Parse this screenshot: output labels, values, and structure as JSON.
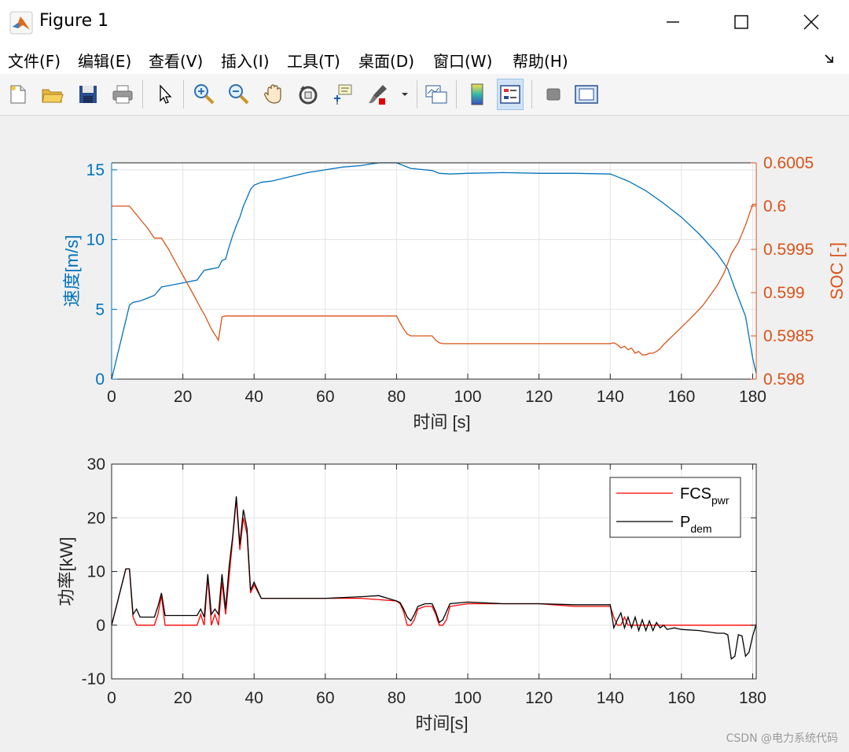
{
  "window": {
    "title": "Figure 1",
    "icon": "matlab-logo-icon",
    "controls": [
      "minimize-icon",
      "maximize-icon",
      "close-icon"
    ]
  },
  "menu": {
    "items": [
      "文件(F)",
      "编辑(E)",
      "查看(V)",
      "插入(I)",
      "工具(T)",
      "桌面(D)",
      "窗口(W)",
      "帮助(H)"
    ],
    "overflow_icon": "dock-arrow-icon"
  },
  "toolbar": {
    "buttons": [
      "new-figure-icon",
      "open-file-icon",
      "save-icon",
      "print-icon",
      "pointer-icon",
      "zoom-in-icon",
      "zoom-out-icon",
      "pan-icon",
      "rotate-3d-icon",
      "data-cursor-icon",
      "brush-icon",
      "brush-dropdown-icon",
      "link-plot-icon",
      "colorbar-icon",
      "legend-icon",
      "hide-plot-tools-icon",
      "show-plot-tools-icon"
    ],
    "active": "legend-icon"
  },
  "watermark": "CSDN @电力系统代码",
  "colors": {
    "blue": "#0072BD",
    "orange": "#D95319",
    "red": "#FF0000",
    "black": "#000000"
  },
  "chart_data": [
    {
      "type": "line",
      "xlabel": "时间 [s]",
      "ylabel_left": "速度[m/s]",
      "ylabel_right": "SOC [-]",
      "xlim": [
        0,
        181
      ],
      "ylim_left": [
        0,
        15.5
      ],
      "ylim_right": [
        0.598,
        0.6005
      ],
      "xticks": [
        "0",
        "20",
        "40",
        "60",
        "80",
        "100",
        "120",
        "140",
        "160",
        "180"
      ],
      "yticks_left": [
        "0",
        "5",
        "10",
        "15"
      ],
      "yticks_right": [
        "0.598",
        "0.5985",
        "0.599",
        "0.5995",
        "0.6",
        "0.6005"
      ],
      "grid": true,
      "series": [
        {
          "axis": "left",
          "color": "#0072BD",
          "x": [
            0,
            5,
            6,
            8,
            10,
            12,
            14,
            16,
            18,
            20,
            22,
            24,
            26,
            28,
            30,
            31,
            32,
            33,
            34,
            35,
            36,
            37,
            38,
            39,
            40,
            42,
            45,
            50,
            55,
            60,
            65,
            70,
            75,
            78,
            80,
            82,
            84,
            86,
            88,
            90,
            92,
            95,
            100,
            110,
            120,
            130,
            140,
            142,
            145,
            150,
            155,
            160,
            165,
            170,
            173,
            175,
            178,
            180,
            181
          ],
          "y": [
            0,
            5.3,
            5.5,
            5.6,
            5.8,
            6.0,
            6.6,
            6.7,
            6.8,
            6.9,
            7.0,
            7.1,
            7.8,
            7.9,
            8.0,
            8.5,
            8.6,
            9.5,
            10.3,
            11.0,
            11.6,
            12.4,
            13.0,
            13.6,
            13.9,
            14.1,
            14.2,
            14.5,
            14.8,
            15.0,
            15.2,
            15.3,
            15.5,
            15.5,
            15.5,
            15.3,
            15.1,
            15.05,
            15.0,
            14.95,
            14.75,
            14.7,
            14.75,
            14.8,
            14.75,
            14.75,
            14.7,
            14.5,
            14.2,
            13.5,
            12.6,
            11.6,
            10.4,
            9.0,
            7.9,
            6.5,
            4.5,
            1.5,
            0.4
          ]
        },
        {
          "axis": "right",
          "color": "#D95319",
          "x": [
            0,
            4,
            5,
            6,
            8,
            10,
            12,
            14,
            16,
            18,
            20,
            22,
            24,
            25,
            26,
            28,
            30,
            31,
            32,
            40,
            50,
            60,
            70,
            80,
            81,
            82,
            83,
            84,
            90,
            91,
            92,
            93,
            100,
            110,
            120,
            130,
            140,
            141,
            142,
            143,
            144,
            145,
            146,
            147,
            148,
            149,
            150,
            151,
            152,
            153,
            154,
            155,
            158,
            162,
            166,
            170,
            172,
            174,
            176,
            178,
            180,
            181
          ],
          "y": [
            0.6,
            0.6,
            0.6,
            0.59995,
            0.59985,
            0.59975,
            0.59963,
            0.59963,
            0.5995,
            0.59935,
            0.5992,
            0.59905,
            0.5989,
            0.59882,
            0.59875,
            0.59858,
            0.59845,
            0.59872,
            0.59873,
            0.59873,
            0.59873,
            0.59873,
            0.59873,
            0.59873,
            0.59865,
            0.59858,
            0.59852,
            0.5985,
            0.5985,
            0.59845,
            0.59842,
            0.59841,
            0.59841,
            0.59841,
            0.59841,
            0.59841,
            0.59841,
            0.59842,
            0.5984,
            0.59836,
            0.59838,
            0.59834,
            0.59836,
            0.5983,
            0.59832,
            0.59828,
            0.59828,
            0.5983,
            0.5983,
            0.59832,
            0.59835,
            0.5984,
            0.59852,
            0.59868,
            0.59885,
            0.59908,
            0.59923,
            0.59945,
            0.59958,
            0.59978,
            0.60002,
            0.60002
          ]
        }
      ]
    },
    {
      "type": "line",
      "xlabel": "时间[s]",
      "ylabel": "功率[kW]",
      "xlim": [
        0,
        181
      ],
      "ylim": [
        -10,
        30
      ],
      "xticks": [
        "0",
        "20",
        "40",
        "60",
        "80",
        "100",
        "120",
        "140",
        "160",
        "180"
      ],
      "yticks": [
        "-10",
        "0",
        "10",
        "20",
        "30"
      ],
      "grid": true,
      "legend": "top-right",
      "series": [
        {
          "name": "FCS",
          "name_sub": "pwr",
          "color": "#FF0000",
          "x": [
            0,
            4,
            5,
            6,
            7,
            8,
            9,
            11,
            12,
            13,
            14,
            15,
            16,
            24,
            25,
            26,
            27,
            28,
            29,
            30,
            31,
            32,
            33,
            34,
            35,
            36,
            37,
            38,
            39,
            40,
            42,
            50,
            60,
            70,
            80,
            81,
            82,
            83,
            84,
            85,
            86,
            88,
            90,
            91,
            92,
            93,
            94,
            95,
            100,
            110,
            120,
            130,
            140,
            141,
            142,
            143,
            144,
            145,
            146,
            150,
            160,
            170,
            181
          ],
          "y": [
            0,
            10.5,
            10.5,
            1.5,
            0,
            0,
            0,
            0,
            0,
            2,
            5.5,
            0,
            0,
            0,
            2,
            0,
            9,
            0,
            2,
            0,
            8,
            2,
            9,
            16,
            23.5,
            14,
            20,
            17,
            6,
            7.5,
            5,
            5,
            5,
            5,
            4.5,
            4,
            2.5,
            0,
            0,
            1,
            3,
            3.5,
            3.5,
            2,
            0,
            0,
            1,
            3.5,
            4,
            4,
            4,
            3.5,
            3.5,
            1.5,
            0,
            0,
            1.5,
            0,
            0,
            0,
            0,
            0,
            0
          ]
        },
        {
          "name": "P",
          "name_sub": "dem",
          "color": "#000000",
          "x": [
            0,
            4,
            5,
            6,
            7,
            8,
            9,
            11,
            12,
            13,
            14,
            15,
            16,
            24,
            25,
            26,
            27,
            28,
            29,
            30,
            31,
            32,
            33,
            34,
            35,
            36,
            37,
            38,
            39,
            40,
            42,
            50,
            60,
            70,
            75,
            80,
            81,
            82,
            83,
            84,
            85,
            86,
            88,
            90,
            91,
            92,
            93,
            94,
            95,
            100,
            110,
            120,
            130,
            140,
            141,
            142,
            143,
            144,
            145,
            146,
            147,
            148,
            149,
            150,
            151,
            152,
            153,
            154,
            155,
            156,
            158,
            160,
            165,
            170,
            172,
            173,
            174,
            175,
            176,
            177,
            178,
            179,
            180,
            181
          ],
          "y": [
            0,
            10.5,
            10.5,
            2,
            3,
            1.5,
            1.5,
            1.5,
            1.5,
            3.5,
            6,
            1.8,
            1.8,
            1.8,
            3,
            1.5,
            9.5,
            2,
            3,
            2,
            9.5,
            3,
            11,
            16.5,
            24,
            15,
            21.5,
            18,
            6.5,
            8,
            5,
            5,
            5,
            5.3,
            5.5,
            4.5,
            4.2,
            3,
            1.5,
            0.8,
            2,
            3.5,
            4,
            4,
            2.5,
            0.5,
            1,
            2.5,
            4,
            4.3,
            4,
            4,
            3.8,
            3.8,
            -0.5,
            1,
            2.3,
            -0.5,
            1.5,
            -0.5,
            1.5,
            -1,
            1,
            -1,
            0.8,
            -1,
            0.5,
            -0.5,
            0,
            -0.8,
            -0.5,
            -0.8,
            -1,
            -1.5,
            -1.5,
            -1.8,
            -6.3,
            -5.8,
            -1.8,
            -2,
            -5.8,
            -5,
            -2,
            0.2
          ]
        }
      ]
    }
  ]
}
